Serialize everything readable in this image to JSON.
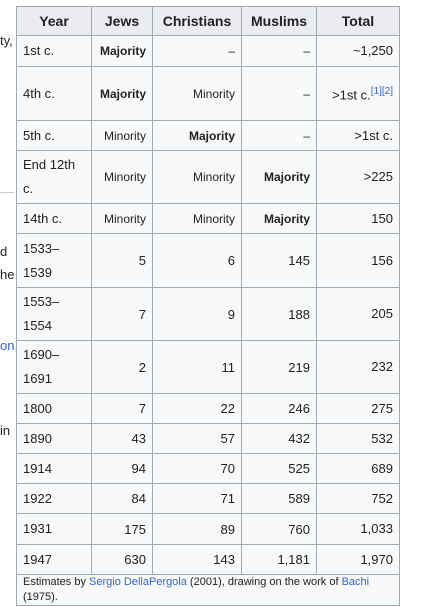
{
  "left_fragments": [
    {
      "text": "ty,",
      "link": false
    },
    {
      "text": "d",
      "link": false
    },
    {
      "text": "he",
      "link": false
    },
    {
      "text": "on,",
      "link": true
    },
    {
      "text": "in",
      "link": false
    }
  ],
  "table": {
    "headers": [
      "Year",
      "Jews",
      "Christians",
      "Muslims",
      "Total"
    ],
    "rows": [
      {
        "year": "1st c.",
        "jews": "Majority",
        "christians": "–",
        "muslims": "–",
        "total": "~1,250",
        "ref": ""
      },
      {
        "year": "4th c.",
        "jews": "Majority",
        "christians": "Minority",
        "muslims": "–",
        "total": ">1st c.",
        "ref": "[1][2]"
      },
      {
        "year": "5th c.",
        "jews": "Minority",
        "christians": "Majority",
        "muslims": "–",
        "total": ">1st c.",
        "ref": ""
      },
      {
        "year": "End 12th c.",
        "jews": "Minority",
        "christians": "Minority",
        "muslims": "Majority",
        "total": ">225",
        "ref": ""
      },
      {
        "year": "14th c.",
        "jews": "Minority",
        "christians": "Minority",
        "muslims": "Majority",
        "total": "150",
        "ref": ""
      },
      {
        "year": "1533–1539",
        "jews": "5",
        "christians": "6",
        "muslims": "145",
        "total": "156",
        "ref": ""
      },
      {
        "year": "1553–1554",
        "jews": "7",
        "christians": "9",
        "muslims": "188",
        "total": "205",
        "ref": ""
      },
      {
        "year": "1690–1691",
        "jews": "2",
        "christians": "11",
        "muslims": "219",
        "total": "232",
        "ref": ""
      },
      {
        "year": "1800",
        "jews": "7",
        "christians": "22",
        "muslims": "246",
        "total": "275",
        "ref": ""
      },
      {
        "year": "1890",
        "jews": "43",
        "christians": "57",
        "muslims": "432",
        "total": "532",
        "ref": ""
      },
      {
        "year": "1914",
        "jews": "94",
        "christians": "70",
        "muslims": "525",
        "total": "689",
        "ref": ""
      },
      {
        "year": "1922",
        "jews": "84",
        "christians": "71",
        "muslims": "589",
        "total": "752",
        "ref": ""
      },
      {
        "year": "1931",
        "jews": "175",
        "christians": "89",
        "muslims": "760",
        "total": "1,033",
        "ref": ""
      },
      {
        "year": "1947",
        "jews": "630",
        "christians": "143",
        "muslims": "1,181",
        "total": "1,970",
        "ref": ""
      }
    ],
    "caption": {
      "prefix": "Estimates by ",
      "author_link": "Sergio DellaPergola",
      "middle": " (2001), drawing on the work of ",
      "source_link": "Bachi",
      "suffix": " (1975)."
    }
  }
}
